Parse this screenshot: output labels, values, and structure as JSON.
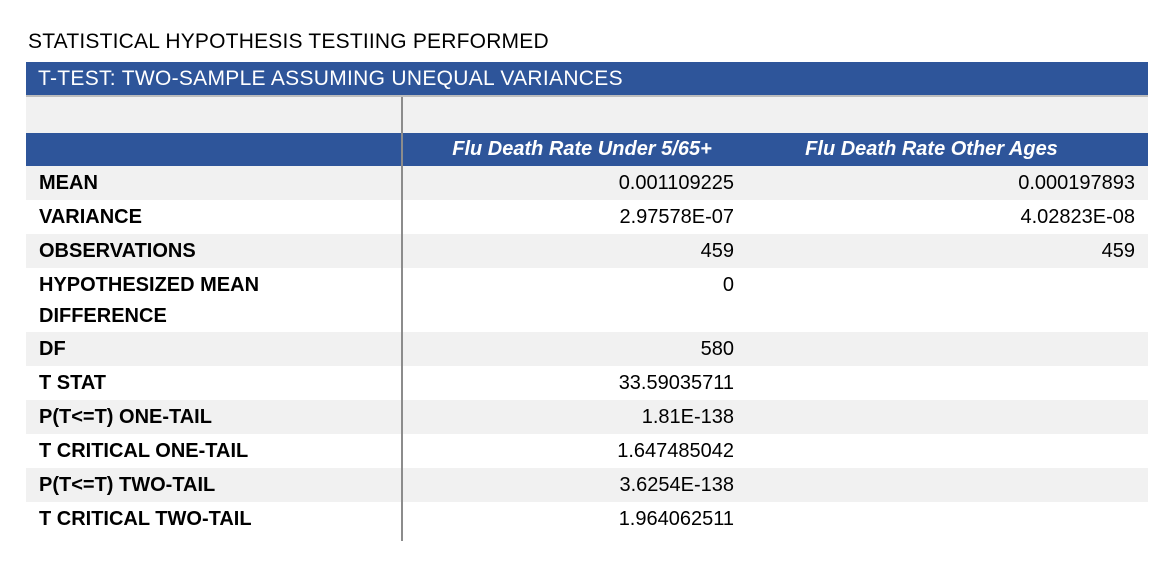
{
  "page_title": "STATISTICAL HYPOTHESIS TESTIING PERFORMED",
  "table": {
    "banner": "T-TEST: TWO-SAMPLE ASSUMING UNEQUAL VARIANCES",
    "column_headers": [
      "",
      "Flu Death Rate Under 5/65+",
      "Flu Death Rate Other Ages"
    ],
    "rows": [
      {
        "label": "MEAN",
        "col1": "0.001109225",
        "col2": "0.000197893"
      },
      {
        "label": "VARIANCE",
        "col1": "2.97578E-07",
        "col2": "4.02823E-08"
      },
      {
        "label": "OBSERVATIONS",
        "col1": "459",
        "col2": "459"
      },
      {
        "label": "HYPOTHESIZED MEAN DIFFERENCE",
        "col1": "0",
        "col2": ""
      },
      {
        "label": "DF",
        "col1": "580",
        "col2": ""
      },
      {
        "label": "T STAT",
        "col1": "33.59035711",
        "col2": ""
      },
      {
        "label": "P(T<=T) ONE-TAIL",
        "col1": "1.81E-138",
        "col2": ""
      },
      {
        "label": "T CRITICAL ONE-TAIL",
        "col1": "1.647485042",
        "col2": ""
      },
      {
        "label": "P(T<=T) TWO-TAIL",
        "col1": "3.6254E-138",
        "col2": ""
      },
      {
        "label": "T CRITICAL TWO-TAIL",
        "col1": "1.964062511",
        "col2": ""
      }
    ]
  },
  "colors": {
    "header_blue": "#2e559a",
    "row_shade": "#f1f1f1",
    "divider": "#8c8c8c"
  }
}
